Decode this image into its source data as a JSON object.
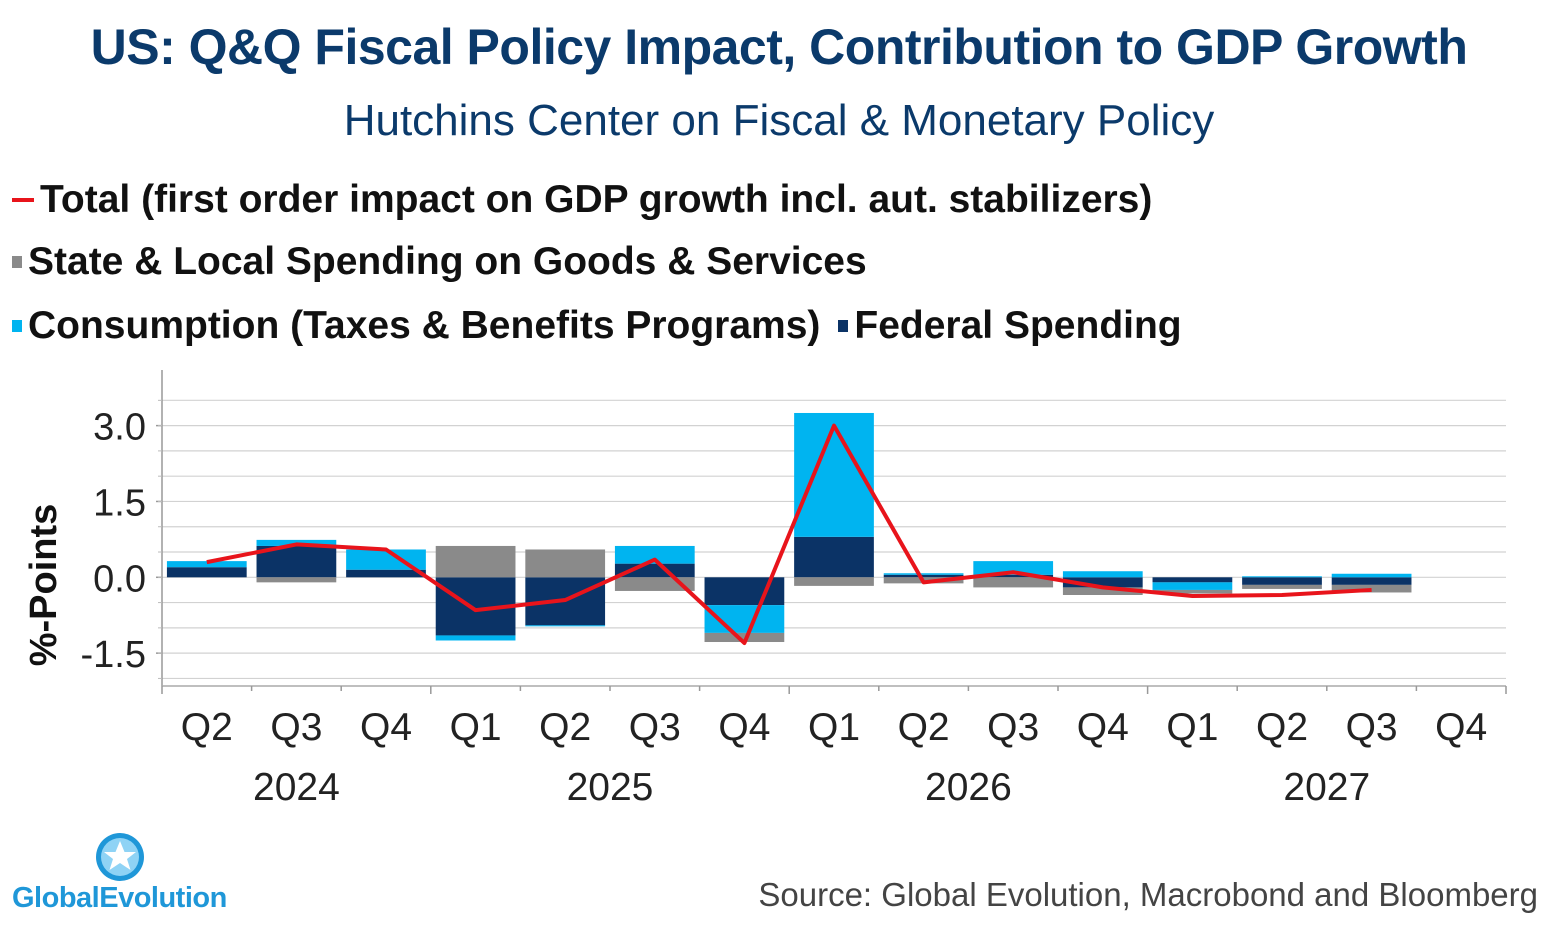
{
  "title": "US: Q&Q Fiscal Policy Impact, Contribution to GDP Growth",
  "subtitle": "Hutchins Center on Fiscal & Monetary Policy",
  "source": "Source: Global Evolution, Macrobond and Bloomberg",
  "logo_text": "GlobalEvolution",
  "colors": {
    "total": "#e8141b",
    "state_local": "#8a8a8a",
    "consumption": "#00b4f0",
    "federal": "#0b3366",
    "title": "#0b3a6b"
  },
  "legend": {
    "total": "Total (first order impact on GDP growth incl. aut. stabilizers)",
    "state_local": "State & Local Spending on Goods & Services",
    "consumption": "Consumption (Taxes & Benefits Programs)",
    "federal": "Federal Spending"
  },
  "chart_data": {
    "type": "bar",
    "stacked": true,
    "ylabel": "%-Points",
    "ylim": [
      -2.15,
      4.1
    ],
    "yticks": [
      -1.5,
      0.0,
      1.5,
      3.0
    ],
    "ytick_labels": [
      "-1.5",
      "0.0",
      "1.5",
      "3.0"
    ],
    "categories": [
      "Q2",
      "Q3",
      "Q4",
      "Q1",
      "Q2",
      "Q3",
      "Q4",
      "Q1",
      "Q2",
      "Q3",
      "Q4",
      "Q1",
      "Q2",
      "Q3",
      "Q4"
    ],
    "years": [
      {
        "label": "2024",
        "start": 0,
        "end": 2
      },
      {
        "label": "2025",
        "start": 3,
        "end": 6
      },
      {
        "label": "2026",
        "start": 7,
        "end": 10
      },
      {
        "label": "2027",
        "start": 11,
        "end": 14
      }
    ],
    "series": [
      {
        "name": "Federal Spending",
        "key": "federal",
        "type": "bar",
        "values": [
          0.2,
          0.62,
          0.15,
          -1.15,
          -0.95,
          0.27,
          -0.55,
          0.8,
          0.05,
          0.05,
          -0.2,
          -0.1,
          -0.15,
          -0.15,
          null
        ]
      },
      {
        "name": "Consumption (Taxes & Benefits Programs)",
        "key": "consumption",
        "type": "bar",
        "values": [
          0.12,
          0.12,
          0.4,
          -0.1,
          -0.02,
          0.35,
          -0.55,
          2.45,
          0.03,
          0.27,
          0.12,
          -0.15,
          0.02,
          0.07,
          null
        ]
      },
      {
        "name": "State & Local Spending on Goods & Services",
        "key": "state_local",
        "type": "bar",
        "values": [
          0.0,
          -0.1,
          0.0,
          0.62,
          0.55,
          -0.27,
          -0.18,
          -0.17,
          -0.12,
          -0.2,
          -0.15,
          -0.07,
          -0.08,
          -0.15,
          null
        ]
      },
      {
        "name": "Total (first order impact on GDP growth incl. aut. stabilizers)",
        "key": "total",
        "type": "line",
        "values": [
          0.3,
          0.65,
          0.55,
          -0.65,
          -0.45,
          0.35,
          -1.3,
          3.0,
          -0.1,
          0.1,
          -0.2,
          -0.37,
          -0.35,
          -0.25,
          null
        ]
      }
    ]
  }
}
